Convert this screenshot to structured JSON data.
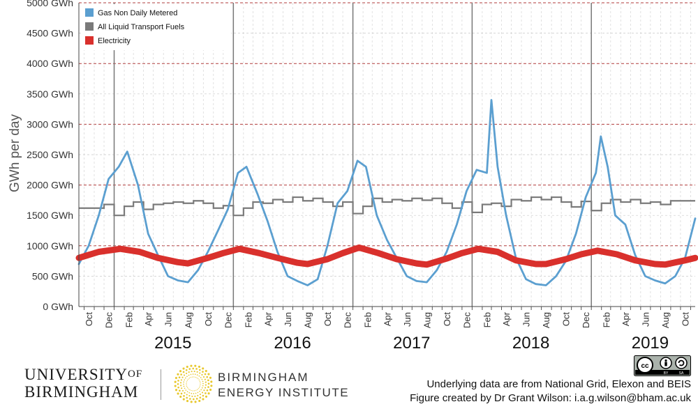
{
  "chart_data": {
    "type": "line",
    "ylabel": "GWh per day",
    "y_ticks": [
      "0 GWh",
      "500 GWh",
      "1000 GWh",
      "1500 GWh",
      "2000 GWh",
      "2500 GWh",
      "3000 GWh",
      "3500 GWh",
      "4000 GWh",
      "4500 GWh",
      "5000 GWh"
    ],
    "ylim": [
      0,
      5000
    ],
    "x_start": "2014-09-15",
    "x_end": "2019-11-15",
    "month_ticks": [
      "Oct",
      "Dec",
      "Feb",
      "Apr",
      "Jun",
      "Aug",
      "Oct",
      "Dec",
      "Feb",
      "Apr",
      "Jun",
      "Aug",
      "Oct",
      "Dec",
      "Feb",
      "Apr",
      "Jun",
      "Aug",
      "Oct",
      "Dec",
      "Feb",
      "Apr",
      "Jun",
      "Aug",
      "Oct",
      "Dec",
      "Feb",
      "Apr",
      "Jun",
      "Aug",
      "Oct"
    ],
    "year_labels": [
      "2015",
      "2016",
      "2017",
      "2018",
      "2019"
    ],
    "legend": {
      "placement": "top-left"
    },
    "grid": true,
    "series": [
      {
        "name": "Gas Non Daily Metered",
        "color": "#5b9fd0",
        "points": [
          [
            "2014-09-15",
            700
          ],
          [
            "2014-10-15",
            1000
          ],
          [
            "2014-11-15",
            1500
          ],
          [
            "2014-12-15",
            2100
          ],
          [
            "2015-01-15",
            2300
          ],
          [
            "2015-02-10",
            2550
          ],
          [
            "2015-03-15",
            2000
          ],
          [
            "2015-04-15",
            1200
          ],
          [
            "2015-05-15",
            850
          ],
          [
            "2015-06-15",
            500
          ],
          [
            "2015-07-15",
            430
          ],
          [
            "2015-08-15",
            400
          ],
          [
            "2015-09-15",
            600
          ],
          [
            "2015-10-15",
            900
          ],
          [
            "2015-11-15",
            1250
          ],
          [
            "2015-12-15",
            1600
          ],
          [
            "2016-01-15",
            2200
          ],
          [
            "2016-02-10",
            2300
          ],
          [
            "2016-03-15",
            1850
          ],
          [
            "2016-04-15",
            1400
          ],
          [
            "2016-05-15",
            900
          ],
          [
            "2016-06-15",
            500
          ],
          [
            "2016-07-15",
            420
          ],
          [
            "2016-08-15",
            350
          ],
          [
            "2016-09-15",
            450
          ],
          [
            "2016-10-15",
            1000
          ],
          [
            "2016-11-15",
            1700
          ],
          [
            "2016-12-15",
            1900
          ],
          [
            "2017-01-15",
            2400
          ],
          [
            "2017-02-10",
            2300
          ],
          [
            "2017-03-15",
            1500
          ],
          [
            "2017-04-15",
            1100
          ],
          [
            "2017-05-15",
            800
          ],
          [
            "2017-06-15",
            500
          ],
          [
            "2017-07-15",
            420
          ],
          [
            "2017-08-15",
            400
          ],
          [
            "2017-09-15",
            600
          ],
          [
            "2017-10-15",
            900
          ],
          [
            "2017-11-15",
            1350
          ],
          [
            "2017-12-15",
            1900
          ],
          [
            "2018-01-15",
            2250
          ],
          [
            "2018-02-15",
            2200
          ],
          [
            "2018-03-01",
            3400
          ],
          [
            "2018-03-20",
            2300
          ],
          [
            "2018-04-15",
            1500
          ],
          [
            "2018-05-15",
            800
          ],
          [
            "2018-06-15",
            450
          ],
          [
            "2018-07-15",
            370
          ],
          [
            "2018-08-15",
            350
          ],
          [
            "2018-09-15",
            500
          ],
          [
            "2018-10-15",
            750
          ],
          [
            "2018-11-15",
            1200
          ],
          [
            "2018-12-15",
            1800
          ],
          [
            "2019-01-15",
            2200
          ],
          [
            "2019-01-30",
            2800
          ],
          [
            "2019-02-20",
            2300
          ],
          [
            "2019-03-15",
            1500
          ],
          [
            "2019-04-15",
            1350
          ],
          [
            "2019-05-15",
            850
          ],
          [
            "2019-06-15",
            500
          ],
          [
            "2019-07-15",
            430
          ],
          [
            "2019-08-15",
            380
          ],
          [
            "2019-09-15",
            500
          ],
          [
            "2019-10-15",
            800
          ],
          [
            "2019-11-15",
            1450
          ]
        ]
      },
      {
        "name": "All Liquid Transport Fuels",
        "color": "#7a7a7a",
        "points": [
          [
            "2014-09-15",
            1620
          ],
          [
            "2014-12-01",
            1680
          ],
          [
            "2015-01-01",
            1500
          ],
          [
            "2015-02-01",
            1650
          ],
          [
            "2015-03-01",
            1720
          ],
          [
            "2015-04-01",
            1600
          ],
          [
            "2015-05-01",
            1680
          ],
          [
            "2015-06-01",
            1700
          ],
          [
            "2015-07-01",
            1720
          ],
          [
            "2015-08-01",
            1700
          ],
          [
            "2015-09-01",
            1740
          ],
          [
            "2015-10-01",
            1700
          ],
          [
            "2015-11-01",
            1620
          ],
          [
            "2015-12-01",
            1660
          ],
          [
            "2016-01-01",
            1500
          ],
          [
            "2016-02-01",
            1620
          ],
          [
            "2016-03-01",
            1720
          ],
          [
            "2016-04-01",
            1700
          ],
          [
            "2016-05-01",
            1760
          ],
          [
            "2016-06-01",
            1720
          ],
          [
            "2016-07-01",
            1800
          ],
          [
            "2016-08-01",
            1740
          ],
          [
            "2016-09-01",
            1780
          ],
          [
            "2016-10-01",
            1720
          ],
          [
            "2016-11-01",
            1650
          ],
          [
            "2016-12-01",
            1720
          ],
          [
            "2017-01-01",
            1530
          ],
          [
            "2017-02-01",
            1650
          ],
          [
            "2017-03-01",
            1780
          ],
          [
            "2017-04-01",
            1720
          ],
          [
            "2017-05-01",
            1760
          ],
          [
            "2017-06-01",
            1740
          ],
          [
            "2017-07-01",
            1780
          ],
          [
            "2017-08-01",
            1750
          ],
          [
            "2017-09-01",
            1780
          ],
          [
            "2017-10-01",
            1700
          ],
          [
            "2017-11-01",
            1620
          ],
          [
            "2017-12-01",
            1720
          ],
          [
            "2018-01-01",
            1550
          ],
          [
            "2018-02-01",
            1680
          ],
          [
            "2018-03-01",
            1700
          ],
          [
            "2018-04-01",
            1650
          ],
          [
            "2018-05-01",
            1760
          ],
          [
            "2018-06-01",
            1740
          ],
          [
            "2018-07-01",
            1800
          ],
          [
            "2018-08-01",
            1760
          ],
          [
            "2018-09-01",
            1800
          ],
          [
            "2018-10-01",
            1720
          ],
          [
            "2018-11-01",
            1640
          ],
          [
            "2018-12-01",
            1730
          ],
          [
            "2019-01-01",
            1580
          ],
          [
            "2019-02-01",
            1700
          ],
          [
            "2019-03-01",
            1760
          ],
          [
            "2019-04-01",
            1720
          ],
          [
            "2019-05-01",
            1760
          ],
          [
            "2019-06-01",
            1700
          ],
          [
            "2019-07-01",
            1720
          ],
          [
            "2019-08-01",
            1680
          ],
          [
            "2019-09-01",
            1740
          ],
          [
            "2019-11-15",
            1740
          ]
        ]
      },
      {
        "name": "Electricity",
        "color": "#d9302c",
        "points": [
          [
            "2014-09-15",
            800
          ],
          [
            "2014-11-15",
            900
          ],
          [
            "2015-01-20",
            950
          ],
          [
            "2015-03-20",
            900
          ],
          [
            "2015-05-15",
            800
          ],
          [
            "2015-07-15",
            730
          ],
          [
            "2015-08-15",
            710
          ],
          [
            "2015-10-15",
            800
          ],
          [
            "2015-12-01",
            880
          ],
          [
            "2016-01-20",
            950
          ],
          [
            "2016-03-20",
            880
          ],
          [
            "2016-05-15",
            800
          ],
          [
            "2016-07-15",
            720
          ],
          [
            "2016-08-15",
            700
          ],
          [
            "2016-10-15",
            780
          ],
          [
            "2016-12-01",
            880
          ],
          [
            "2017-01-20",
            970
          ],
          [
            "2017-03-20",
            880
          ],
          [
            "2017-05-15",
            780
          ],
          [
            "2017-07-15",
            710
          ],
          [
            "2017-08-15",
            690
          ],
          [
            "2017-10-15",
            790
          ],
          [
            "2017-12-01",
            880
          ],
          [
            "2018-01-20",
            950
          ],
          [
            "2018-03-20",
            900
          ],
          [
            "2018-05-15",
            760
          ],
          [
            "2018-07-15",
            700
          ],
          [
            "2018-08-15",
            700
          ],
          [
            "2018-10-15",
            780
          ],
          [
            "2018-12-01",
            860
          ],
          [
            "2019-01-20",
            920
          ],
          [
            "2019-03-20",
            860
          ],
          [
            "2019-05-15",
            760
          ],
          [
            "2019-07-15",
            700
          ],
          [
            "2019-08-15",
            690
          ],
          [
            "2019-10-15",
            760
          ],
          [
            "2019-11-15",
            800
          ]
        ]
      }
    ]
  },
  "branding": {
    "uob_line1": "UNIVERSITY",
    "uob_of": "OF",
    "uob_line2": "BIRMINGHAM",
    "bei_line1": "BIRMINGHAM",
    "bei_line2": "ENERGY INSTITUTE",
    "license": "cc by-sa",
    "credit_line1": "Underlying data are from National Grid, Elexon and BEIS",
    "credit_line2": "Figure created by Dr Grant Wilson: i.a.g.wilson@bham.ac.uk"
  }
}
